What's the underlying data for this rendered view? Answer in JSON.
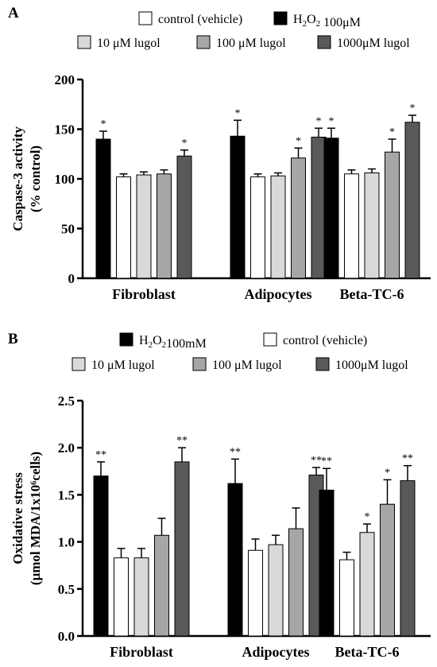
{
  "chart_data": [
    {
      "type": "bar",
      "panel_label": "A",
      "ylabel_lines": [
        "Caspase-3 activity",
        "(% control)"
      ],
      "ylim": [
        0,
        200
      ],
      "yticks": [
        "0",
        "50",
        "100",
        "150",
        "200"
      ],
      "categories": [
        "Fibroblast",
        "Adipocytes",
        "Beta-TC-6"
      ],
      "legend_rows": [
        [
          "control (vehicle)",
          "H2O2 100μM"
        ],
        [
          "10 μM lugol",
          "100 μM lugol",
          "1000μM lugol"
        ]
      ],
      "series": [
        {
          "name": "H2O2 100μM",
          "color": "#000000",
          "values": [
            140,
            143,
            141
          ],
          "errors": [
            8,
            16,
            10
          ],
          "sig": [
            "*",
            "*",
            "*"
          ]
        },
        {
          "name": "control (vehicle)",
          "color": "#ffffff",
          "values": [
            102,
            102,
            105
          ],
          "errors": [
            3,
            3,
            4
          ],
          "sig": [
            "",
            "",
            ""
          ]
        },
        {
          "name": "10 μM lugol",
          "color": "#d9d9d9",
          "values": [
            104,
            103,
            106
          ],
          "errors": [
            3,
            3,
            4
          ],
          "sig": [
            "",
            "",
            ""
          ]
        },
        {
          "name": "100 μM lugol",
          "color": "#a6a6a6",
          "values": [
            105,
            121,
            127
          ],
          "errors": [
            4,
            10,
            13
          ],
          "sig": [
            "",
            "*",
            "*"
          ]
        },
        {
          "name": "1000μM lugol",
          "color": "#595959",
          "values": [
            123,
            142,
            157
          ],
          "errors": [
            6,
            9,
            7
          ],
          "sig": [
            "*",
            "*",
            "*"
          ]
        }
      ]
    },
    {
      "type": "bar",
      "panel_label": "B",
      "ylabel_lines": [
        "Oxidative stress",
        "(μmol MDA/1x10⁶cells)"
      ],
      "ylim": [
        0,
        2.5
      ],
      "yticks": [
        "0.0",
        "0.5",
        "1.0",
        "1.5",
        "2.0",
        "2.5"
      ],
      "categories": [
        "Fibroblast",
        "Adipocytes",
        "Beta-TC-6"
      ],
      "legend_rows": [
        [
          "H2O2100mM",
          "control (vehicle)"
        ],
        [
          "10 μM lugol",
          "100 μM lugol",
          "1000μM lugol"
        ]
      ],
      "series": [
        {
          "name": "H2O2100mM",
          "color": "#000000",
          "values": [
            1.7,
            1.62,
            1.55
          ],
          "errors": [
            0.15,
            0.26,
            0.23
          ],
          "sig": [
            "**",
            "**",
            "**"
          ]
        },
        {
          "name": "control (vehicle)",
          "color": "#ffffff",
          "values": [
            0.83,
            0.91,
            0.81
          ],
          "errors": [
            0.1,
            0.12,
            0.08
          ],
          "sig": [
            "",
            "",
            ""
          ]
        },
        {
          "name": "10 μM lugol",
          "color": "#d9d9d9",
          "values": [
            0.83,
            0.97,
            1.1
          ],
          "errors": [
            0.1,
            0.1,
            0.09
          ],
          "sig": [
            "",
            "",
            "*"
          ]
        },
        {
          "name": "100 μM lugol",
          "color": "#a6a6a6",
          "values": [
            1.07,
            1.14,
            1.4
          ],
          "errors": [
            0.18,
            0.22,
            0.26
          ],
          "sig": [
            "",
            "",
            "*"
          ]
        },
        {
          "name": "1000μM lugol",
          "color": "#595959",
          "values": [
            1.85,
            1.71,
            1.65
          ],
          "errors": [
            0.15,
            0.08,
            0.16
          ],
          "sig": [
            "**",
            "**",
            "**"
          ]
        }
      ]
    }
  ]
}
